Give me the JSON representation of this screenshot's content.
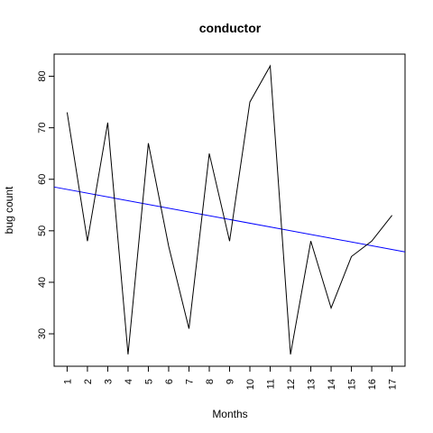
{
  "chart_data": {
    "type": "line",
    "title": "conductor",
    "xlabel": "Months",
    "ylabel": "bug count",
    "x": [
      1,
      2,
      3,
      4,
      5,
      6,
      7,
      8,
      9,
      10,
      11,
      12,
      13,
      14,
      15,
      16,
      17
    ],
    "x_tick_labels": [
      "1",
      "2",
      "3",
      "4",
      "5",
      "6",
      "7",
      "8",
      "9",
      "10",
      "11",
      "12",
      "13",
      "14",
      "15",
      "16",
      "17"
    ],
    "y_ticks": [
      30,
      40,
      50,
      60,
      70,
      80
    ],
    "y_tick_labels": [
      "30",
      "40",
      "50",
      "60",
      "70",
      "80"
    ],
    "xlim": [
      0.36,
      17.64
    ],
    "ylim": [
      23.7,
      84.3
    ],
    "series": [
      {
        "values": [
          73,
          48,
          71,
          26,
          67,
          47,
          31,
          65,
          48,
          75,
          82,
          26,
          48,
          35,
          45,
          48,
          53
        ],
        "color": "#000000"
      }
    ],
    "trend_line": {
      "color": "#0000ff",
      "from": [
        0.36,
        58.5
      ],
      "to": [
        17.64,
        45.9
      ]
    },
    "grid": false,
    "legend": "none"
  }
}
